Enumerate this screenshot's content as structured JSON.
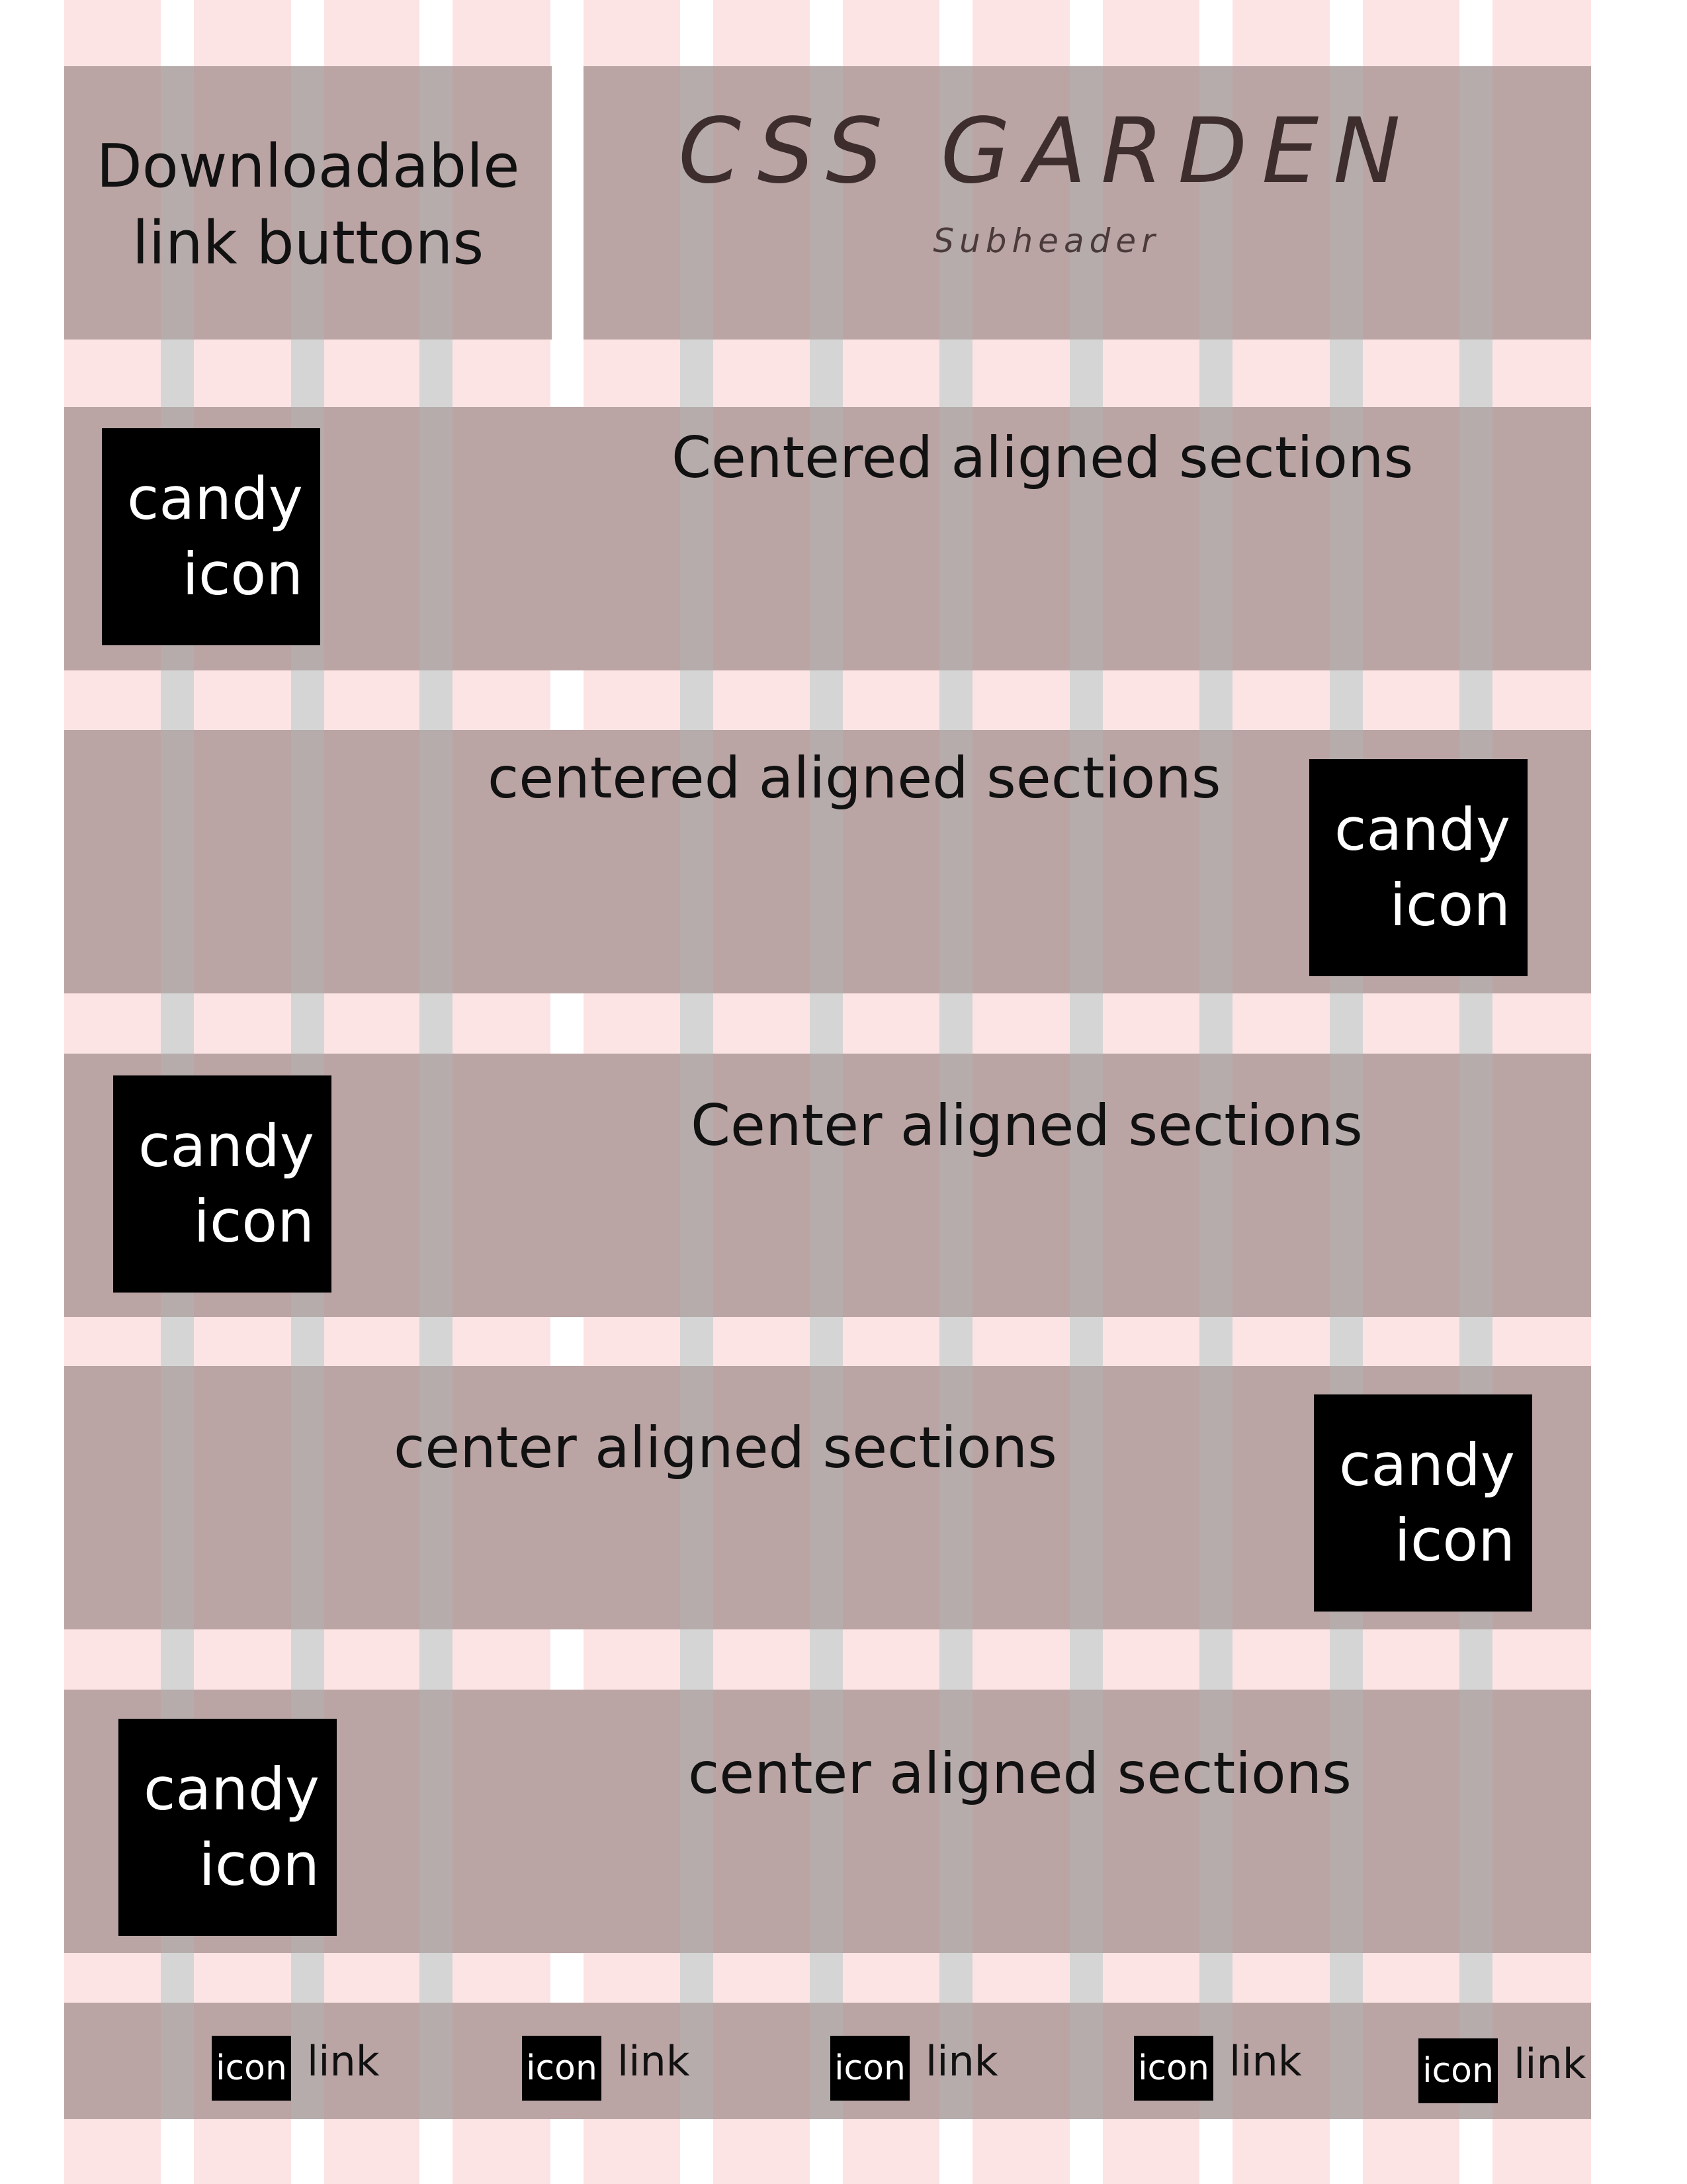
{
  "header": {
    "left_title": "Downloadable link buttons",
    "brand_title": "CSS GARDEN",
    "brand_subheader": "Subheader"
  },
  "sections": [
    {
      "heading": "Centered aligned sections",
      "candy_line1": "candy",
      "candy_line2": "icon"
    },
    {
      "heading": "centered aligned sections",
      "candy_line1": "candy",
      "candy_line2": "icon"
    },
    {
      "heading": "Center aligned sections",
      "candy_line1": "candy",
      "candy_line2": "icon"
    },
    {
      "heading": "center aligned sections",
      "candy_line1": "candy",
      "candy_line2": "icon"
    },
    {
      "heading": "center aligned sections",
      "candy_line1": "candy",
      "candy_line2": "icon"
    }
  ],
  "footer": {
    "links": [
      {
        "icon": "icon",
        "label": "link"
      },
      {
        "icon": "icon",
        "label": "link"
      },
      {
        "icon": "icon",
        "label": "link"
      },
      {
        "icon": "icon",
        "label": "link"
      },
      {
        "icon": "icon",
        "label": "link"
      }
    ]
  },
  "colors": {
    "panel": "#bba4a4",
    "gutter_pink": "#fce4e5",
    "column_gray": "#b6b6b6",
    "candy_box": "#000000"
  }
}
